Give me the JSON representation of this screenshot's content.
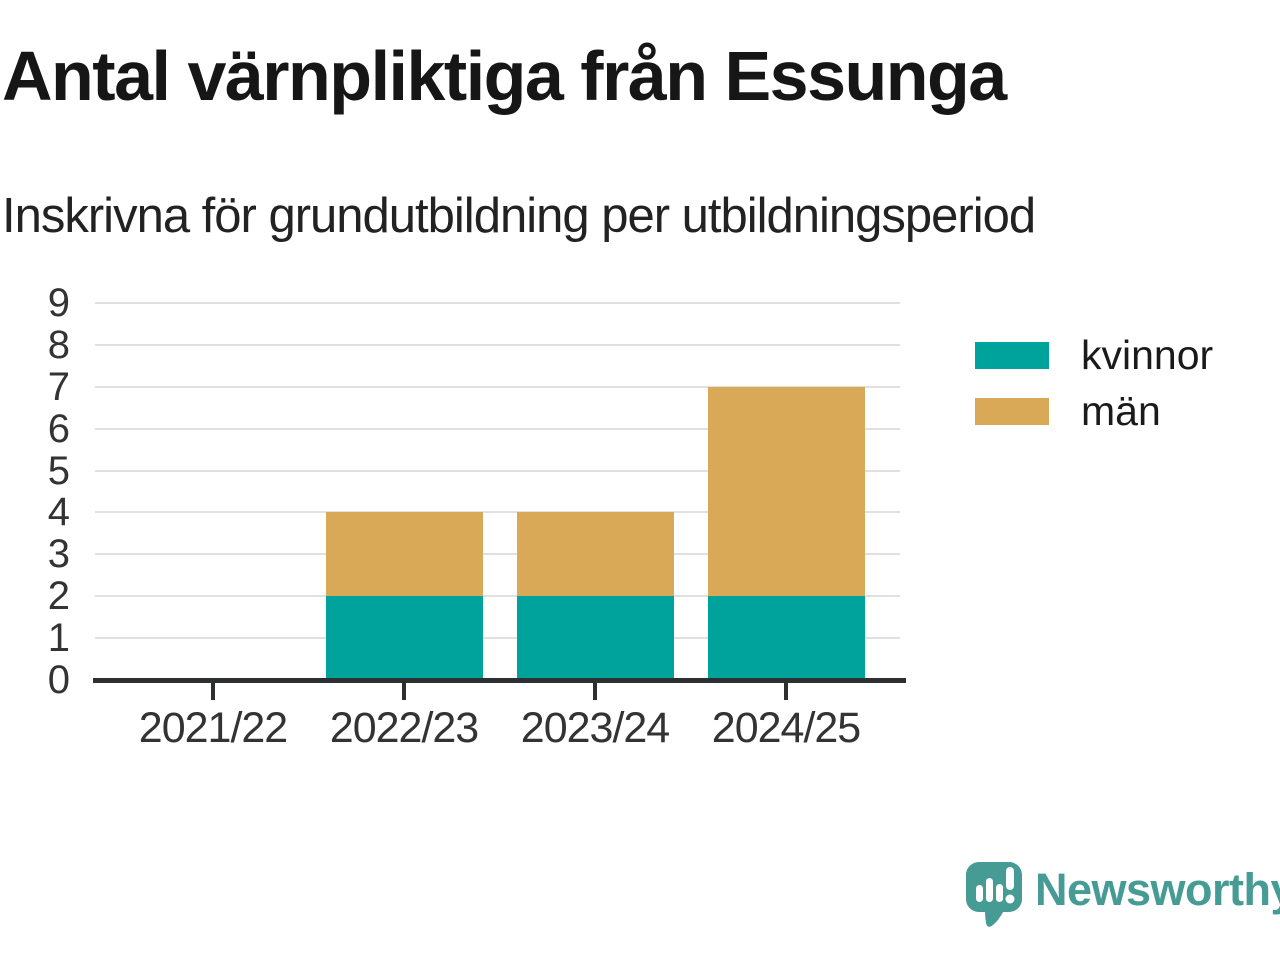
{
  "chart_data": {
    "type": "bar",
    "stacked": true,
    "title": "Antal värnpliktiga från Essunga",
    "subtitle": "Inskrivna för grundutbildning per utbildningsperiod",
    "categories": [
      "2021/22",
      "2022/23",
      "2023/24",
      "2024/25"
    ],
    "series": [
      {
        "name": "kvinnor",
        "color": "#00A39B",
        "values": [
          0,
          2,
          2,
          2
        ]
      },
      {
        "name": "män",
        "color": "#D9A957",
        "values": [
          0,
          2,
          2,
          5
        ]
      }
    ],
    "totals": [
      0,
      4,
      4,
      7
    ],
    "xlabel": "",
    "ylabel": "",
    "ylim": [
      0,
      9
    ],
    "yticks": [
      0,
      1,
      2,
      3,
      4,
      5,
      6,
      7,
      8,
      9
    ],
    "grid": true,
    "legend_position": "right"
  },
  "branding": {
    "logo_text": "Newsworthy",
    "logo_color": "#469B94"
  }
}
